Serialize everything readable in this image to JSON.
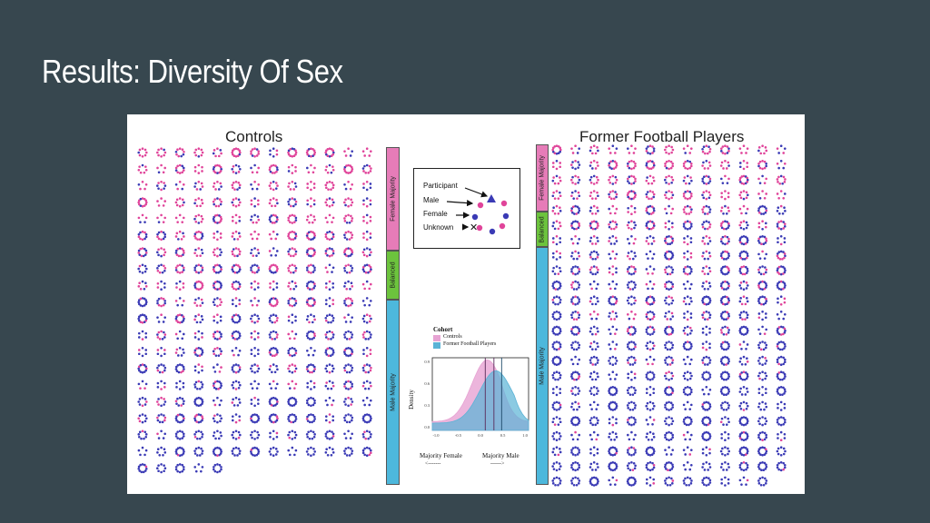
{
  "slide": {
    "title": "Results: Diversity Of Sex",
    "background": "#37474f"
  },
  "figure": {
    "controls": {
      "title": "Controls",
      "rows": 20,
      "cols": 13,
      "last_row_count": 5,
      "sidebar": [
        {
          "label": "Female Majority",
          "color": "#e67cb8"
        },
        {
          "label": "Balanced",
          "color": "#6cc33d"
        },
        {
          "label": "Male Majority",
          "color": "#4db8dc"
        }
      ]
    },
    "players": {
      "title": "Former Football Players",
      "rows": 23,
      "cols": 13,
      "last_row_count": 12,
      "sidebar": [
        {
          "label": "Female Majority",
          "color": "#e67cb8"
        },
        {
          "label": "Balanced",
          "color": "#6cc33d"
        },
        {
          "label": "Male Majority",
          "color": "#4db8dc"
        }
      ]
    },
    "legend": {
      "participant": "Participant",
      "male": "Male",
      "female": "Female",
      "unknown": "Unknown",
      "male_color": "#3a3ab5",
      "female_color": "#e0449a"
    },
    "density": {
      "cohort_title": "Cohort",
      "series": [
        {
          "name": "Controls",
          "color": "#e7a3d3"
        },
        {
          "name": "Former Football Players",
          "color": "#5ab3d6"
        }
      ],
      "ylabel": "Density",
      "yticks": [
        "0.9",
        "0.6",
        "0.3",
        "0.0"
      ],
      "xticks": [
        "-1.0",
        "-0.5",
        "0.0",
        "0.5",
        "1.0"
      ],
      "left_caption": "Majority Female",
      "right_caption": "Majority Male",
      "left_arrow": "<-------",
      "right_arrow": "------>"
    }
  }
}
